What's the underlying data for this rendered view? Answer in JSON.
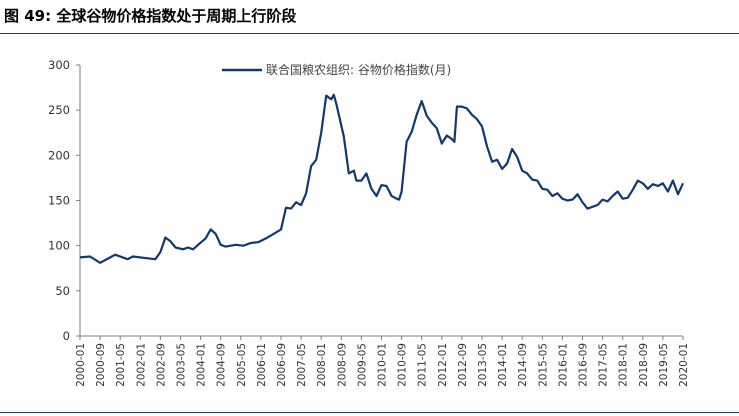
{
  "figure_title": "图 49:  全球谷物价格指数处于周期上行阶段",
  "colors": {
    "series": "#14386a",
    "axis": "#7f7f7f",
    "rule": "#1f3864"
  },
  "chart_data": {
    "type": "line",
    "title": "",
    "xlabel": "",
    "ylabel": "",
    "ylim": [
      0,
      300
    ],
    "yticks": [
      0,
      50,
      100,
      150,
      200,
      250,
      300
    ],
    "grid": false,
    "legend_position": "top-center",
    "x_tick_labels": [
      "2000-01",
      "2000-09",
      "2001-05",
      "2002-01",
      "2002-09",
      "2003-05",
      "2004-01",
      "2004-09",
      "2005-05",
      "2006-01",
      "2006-09",
      "2007-05",
      "2008-01",
      "2008-09",
      "2009-05",
      "2010-01",
      "2010-09",
      "2011-05",
      "2012-01",
      "2012-09",
      "2013-05",
      "2014-01",
      "2014-09",
      "2015-05",
      "2016-01",
      "2016-09",
      "2017-05",
      "2018-01",
      "2018-09",
      "2019-05",
      "2020-01"
    ],
    "series": [
      {
        "name": "联合国粮农组织: 谷物价格指数(月)",
        "points": [
          [
            "2000-01",
            87
          ],
          [
            "2000-05",
            88
          ],
          [
            "2000-09",
            81
          ],
          [
            "2001-01",
            87
          ],
          [
            "2001-03",
            90
          ],
          [
            "2001-08",
            85
          ],
          [
            "2001-10",
            88
          ],
          [
            "2002-04",
            86
          ],
          [
            "2002-07",
            85
          ],
          [
            "2002-09",
            93
          ],
          [
            "2002-11",
            109
          ],
          [
            "2003-01",
            105
          ],
          [
            "2003-03",
            98
          ],
          [
            "2003-06",
            96
          ],
          [
            "2003-08",
            98
          ],
          [
            "2003-10",
            96
          ],
          [
            "2003-12",
            101
          ],
          [
            "2004-03",
            108
          ],
          [
            "2004-05",
            118
          ],
          [
            "2004-07",
            113
          ],
          [
            "2004-09",
            101
          ],
          [
            "2004-11",
            99
          ],
          [
            "2005-03",
            101
          ],
          [
            "2005-06",
            100
          ],
          [
            "2005-09",
            103
          ],
          [
            "2005-12",
            104
          ],
          [
            "2006-03",
            108
          ],
          [
            "2006-06",
            113
          ],
          [
            "2006-09",
            118
          ],
          [
            "2006-11",
            142
          ],
          [
            "2007-01",
            141
          ],
          [
            "2007-03",
            148
          ],
          [
            "2007-05",
            145
          ],
          [
            "2007-07",
            158
          ],
          [
            "2007-09",
            188
          ],
          [
            "2007-11",
            195
          ],
          [
            "2008-01",
            225
          ],
          [
            "2008-03",
            266
          ],
          [
            "2008-05",
            262
          ],
          [
            "2008-06",
            267
          ],
          [
            "2008-07",
            257
          ],
          [
            "2008-10",
            221
          ],
          [
            "2008-12",
            180
          ],
          [
            "2009-02",
            183
          ],
          [
            "2009-03",
            172
          ],
          [
            "2009-05",
            172
          ],
          [
            "2009-07",
            180
          ],
          [
            "2009-09",
            163
          ],
          [
            "2009-11",
            155
          ],
          [
            "2010-01",
            167
          ],
          [
            "2010-03",
            166
          ],
          [
            "2010-05",
            155
          ],
          [
            "2010-07",
            152
          ],
          [
            "2010-08",
            151
          ],
          [
            "2010-09",
            160
          ],
          [
            "2010-11",
            215
          ],
          [
            "2011-01",
            226
          ],
          [
            "2011-03",
            245
          ],
          [
            "2011-05",
            260
          ],
          [
            "2011-06",
            252
          ],
          [
            "2011-07",
            244
          ],
          [
            "2011-09",
            236
          ],
          [
            "2011-11",
            230
          ],
          [
            "2012-01",
            213
          ],
          [
            "2012-03",
            222
          ],
          [
            "2012-05",
            218
          ],
          [
            "2012-06",
            215
          ],
          [
            "2012-07",
            254
          ],
          [
            "2012-09",
            254
          ],
          [
            "2012-11",
            252
          ],
          [
            "2013-01",
            245
          ],
          [
            "2013-03",
            240
          ],
          [
            "2013-05",
            232
          ],
          [
            "2013-07",
            210
          ],
          [
            "2013-09",
            193
          ],
          [
            "2013-11",
            195
          ],
          [
            "2014-01",
            185
          ],
          [
            "2014-03",
            191
          ],
          [
            "2014-05",
            207
          ],
          [
            "2014-07",
            198
          ],
          [
            "2014-09",
            183
          ],
          [
            "2014-11",
            180
          ],
          [
            "2015-01",
            173
          ],
          [
            "2015-03",
            172
          ],
          [
            "2015-05",
            163
          ],
          [
            "2015-07",
            162
          ],
          [
            "2015-09",
            155
          ],
          [
            "2015-11",
            158
          ],
          [
            "2016-01",
            152
          ],
          [
            "2016-03",
            150
          ],
          [
            "2016-05",
            151
          ],
          [
            "2016-07",
            157
          ],
          [
            "2016-09",
            148
          ],
          [
            "2016-11",
            141
          ],
          [
            "2017-01",
            143
          ],
          [
            "2017-03",
            145
          ],
          [
            "2017-05",
            151
          ],
          [
            "2017-07",
            149
          ],
          [
            "2017-09",
            155
          ],
          [
            "2017-11",
            160
          ],
          [
            "2018-01",
            152
          ],
          [
            "2018-03",
            153
          ],
          [
            "2018-05",
            162
          ],
          [
            "2018-07",
            172
          ],
          [
            "2018-09",
            169
          ],
          [
            "2018-11",
            163
          ],
          [
            "2019-01",
            168
          ],
          [
            "2019-03",
            166
          ],
          [
            "2019-05",
            169
          ],
          [
            "2019-07",
            160
          ],
          [
            "2019-09",
            172
          ],
          [
            "2019-11",
            157
          ],
          [
            "2020-01",
            169
          ]
        ]
      }
    ]
  }
}
